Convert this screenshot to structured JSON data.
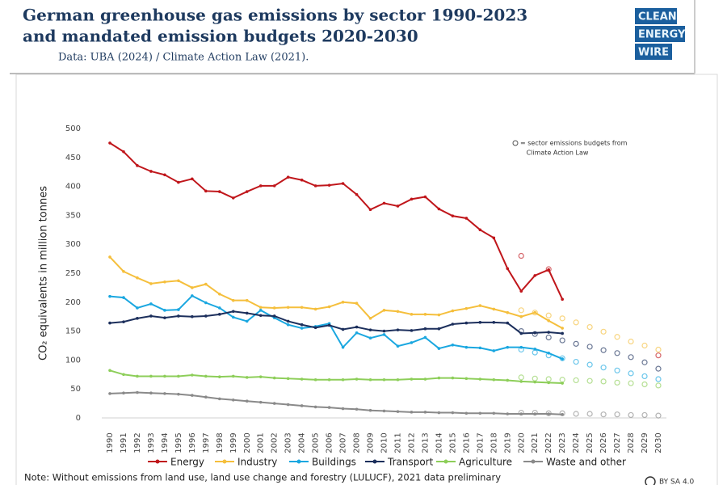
{
  "chart_data": {
    "type": "line",
    "title": [
      "German greenhouse gas emissions by sector 1990-2023",
      "and mandated emission budgets 2020-2030"
    ],
    "subtitle": "Data: UBA (2024) / Climate Action Law (2021).",
    "logo": [
      "CLEAN",
      "ENERGY",
      "WIRE"
    ],
    "y_label": "CO₂ equivalents in million tonnes",
    "annotation": [
      "= sector emissions budgets from",
      "Climate Action Law"
    ],
    "note": "Note: Without emissions from land use, land use change and forestry (LULUCF), 2021 data preliminary",
    "license": "BY SA 4.0",
    "categories": [
      "1990",
      "1991",
      "1992",
      "1993",
      "1994",
      "1995",
      "1996",
      "1997",
      "1998",
      "1999",
      "2000",
      "2001",
      "2002",
      "2003",
      "2004",
      "2005",
      "2006",
      "2007",
      "2008",
      "2009",
      "2010",
      "2011",
      "2012",
      "2013",
      "2014",
      "2015",
      "2016",
      "2017",
      "2018",
      "2019",
      "2020",
      "2021",
      "2022",
      "2023",
      "2024",
      "2025",
      "2026",
      "2027",
      "2028",
      "2029",
      "2030"
    ],
    "ylim": [
      0,
      500
    ],
    "yticks": [
      0,
      50,
      100,
      150,
      200,
      250,
      300,
      350,
      400,
      450,
      500
    ],
    "grid": false,
    "legend": "bottom",
    "series": [
      {
        "name": "Energy",
        "color": "#c0161b",
        "values": [
          475,
          460,
          436,
          426,
          420,
          407,
          413,
          392,
          391,
          380,
          391,
          401,
          401,
          416,
          411,
          401,
          402,
          405,
          386,
          360,
          371,
          366,
          378,
          382,
          361,
          349,
          345,
          325,
          311,
          258,
          219,
          246,
          256,
          205,
          null,
          null,
          null,
          null,
          null,
          null,
          null
        ],
        "budget": [
          null,
          null,
          null,
          null,
          null,
          null,
          null,
          null,
          null,
          null,
          null,
          null,
          null,
          null,
          null,
          null,
          null,
          null,
          null,
          null,
          null,
          null,
          null,
          null,
          null,
          null,
          null,
          null,
          null,
          null,
          280,
          null,
          257,
          null,
          null,
          null,
          null,
          null,
          null,
          null,
          108
        ]
      },
      {
        "name": "Industry",
        "color": "#f5bf3c",
        "values": [
          278,
          253,
          242,
          232,
          235,
          237,
          225,
          231,
          214,
          203,
          203,
          191,
          190,
          191,
          191,
          188,
          192,
          200,
          198,
          172,
          186,
          184,
          179,
          179,
          178,
          185,
          189,
          194,
          188,
          182,
          175,
          182,
          168,
          155,
          null,
          null,
          null,
          null,
          null,
          null,
          null
        ],
        "budget": [
          null,
          null,
          null,
          null,
          null,
          null,
          null,
          null,
          null,
          null,
          null,
          null,
          null,
          null,
          null,
          null,
          null,
          null,
          null,
          null,
          null,
          null,
          null,
          null,
          null,
          null,
          null,
          null,
          null,
          null,
          186,
          182,
          177,
          172,
          165,
          157,
          149,
          140,
          132,
          125,
          118
        ]
      },
      {
        "name": "Buildings",
        "color": "#1aa7e0",
        "values": [
          210,
          208,
          190,
          197,
          186,
          187,
          211,
          199,
          190,
          174,
          167,
          186,
          173,
          161,
          155,
          158,
          163,
          122,
          147,
          138,
          144,
          124,
          130,
          139,
          120,
          126,
          122,
          121,
          116,
          122,
          122,
          119,
          112,
          102,
          null,
          null,
          null,
          null,
          null,
          null,
          null
        ],
        "budget": [
          null,
          null,
          null,
          null,
          null,
          null,
          null,
          null,
          null,
          null,
          null,
          null,
          null,
          null,
          null,
          null,
          null,
          null,
          null,
          null,
          null,
          null,
          null,
          null,
          null,
          null,
          null,
          null,
          null,
          null,
          118,
          113,
          108,
          103,
          97,
          92,
          87,
          82,
          77,
          72,
          67
        ]
      },
      {
        "name": "Transport",
        "color": "#1c2f5c",
        "values": [
          164,
          166,
          172,
          176,
          173,
          176,
          175,
          176,
          179,
          184,
          181,
          177,
          176,
          167,
          161,
          156,
          160,
          153,
          157,
          152,
          150,
          152,
          151,
          154,
          154,
          162,
          164,
          165,
          165,
          164,
          146,
          147,
          148,
          146,
          null,
          null,
          null,
          null,
          null,
          null,
          null
        ],
        "budget": [
          null,
          null,
          null,
          null,
          null,
          null,
          null,
          null,
          null,
          null,
          null,
          null,
          null,
          null,
          null,
          null,
          null,
          null,
          null,
          null,
          null,
          null,
          null,
          null,
          null,
          null,
          null,
          null,
          null,
          null,
          150,
          145,
          139,
          134,
          128,
          123,
          117,
          112,
          105,
          96,
          85
        ]
      },
      {
        "name": "Agriculture",
        "color": "#8dce59",
        "values": [
          82,
          75,
          72,
          72,
          72,
          72,
          74,
          72,
          71,
          72,
          70,
          71,
          69,
          68,
          67,
          66,
          66,
          66,
          67,
          66,
          66,
          66,
          67,
          67,
          69,
          69,
          68,
          67,
          66,
          65,
          63,
          62,
          61,
          60,
          null,
          null,
          null,
          null,
          null,
          null,
          null
        ],
        "budget": [
          null,
          null,
          null,
          null,
          null,
          null,
          null,
          null,
          null,
          null,
          null,
          null,
          null,
          null,
          null,
          null,
          null,
          null,
          null,
          null,
          null,
          null,
          null,
          null,
          null,
          null,
          null,
          null,
          null,
          null,
          70,
          68,
          67,
          66,
          65,
          64,
          63,
          61,
          60,
          58,
          56
        ]
      },
      {
        "name": "Waste and other",
        "color": "#8a8a8a",
        "values": [
          42,
          43,
          44,
          43,
          42,
          41,
          39,
          36,
          33,
          31,
          29,
          27,
          25,
          23,
          21,
          19,
          18,
          16,
          15,
          13,
          12,
          11,
          10,
          10,
          9,
          9,
          8,
          8,
          8,
          7,
          7,
          7,
          7,
          6,
          null,
          null,
          null,
          null,
          null,
          null,
          null
        ],
        "budget": [
          null,
          null,
          null,
          null,
          null,
          null,
          null,
          null,
          null,
          null,
          null,
          null,
          null,
          null,
          null,
          null,
          null,
          null,
          null,
          null,
          null,
          null,
          null,
          null,
          null,
          null,
          null,
          null,
          null,
          null,
          9,
          9,
          8,
          8,
          7,
          7,
          6,
          6,
          5,
          5,
          4
        ]
      }
    ]
  }
}
